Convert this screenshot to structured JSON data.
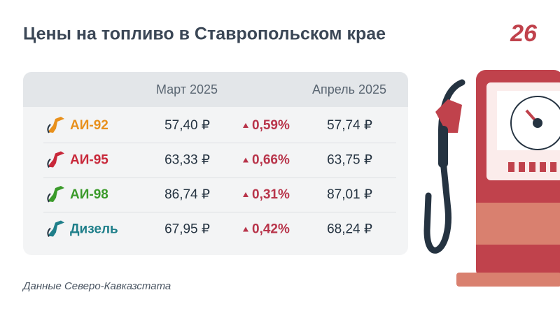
{
  "header": {
    "title": "Цены на топливо в Ставропольском крае",
    "logo": "26"
  },
  "table": {
    "columns": {
      "march": "Март 2025",
      "april": "Апрель 2025"
    },
    "rows": [
      {
        "fuel": "АИ-92",
        "color": "#e8901c",
        "march": "57,40 ₽",
        "change": "0,59%",
        "april": "57,74 ₽"
      },
      {
        "fuel": "АИ-95",
        "color": "#c8283a",
        "march": "63,33 ₽",
        "change": "0,66%",
        "april": "63,75 ₽"
      },
      {
        "fuel": "АИ-98",
        "color": "#3a9a2a",
        "march": "86,74 ₽",
        "change": "0,31%",
        "april": "87,01 ₽"
      },
      {
        "fuel": "Дизель",
        "color": "#1f7f8a",
        "march": "67,95 ₽",
        "change": "0,42%",
        "april": "68,24 ₽"
      }
    ]
  },
  "footer": {
    "source": "Данные Северо-Кавказстата"
  }
}
